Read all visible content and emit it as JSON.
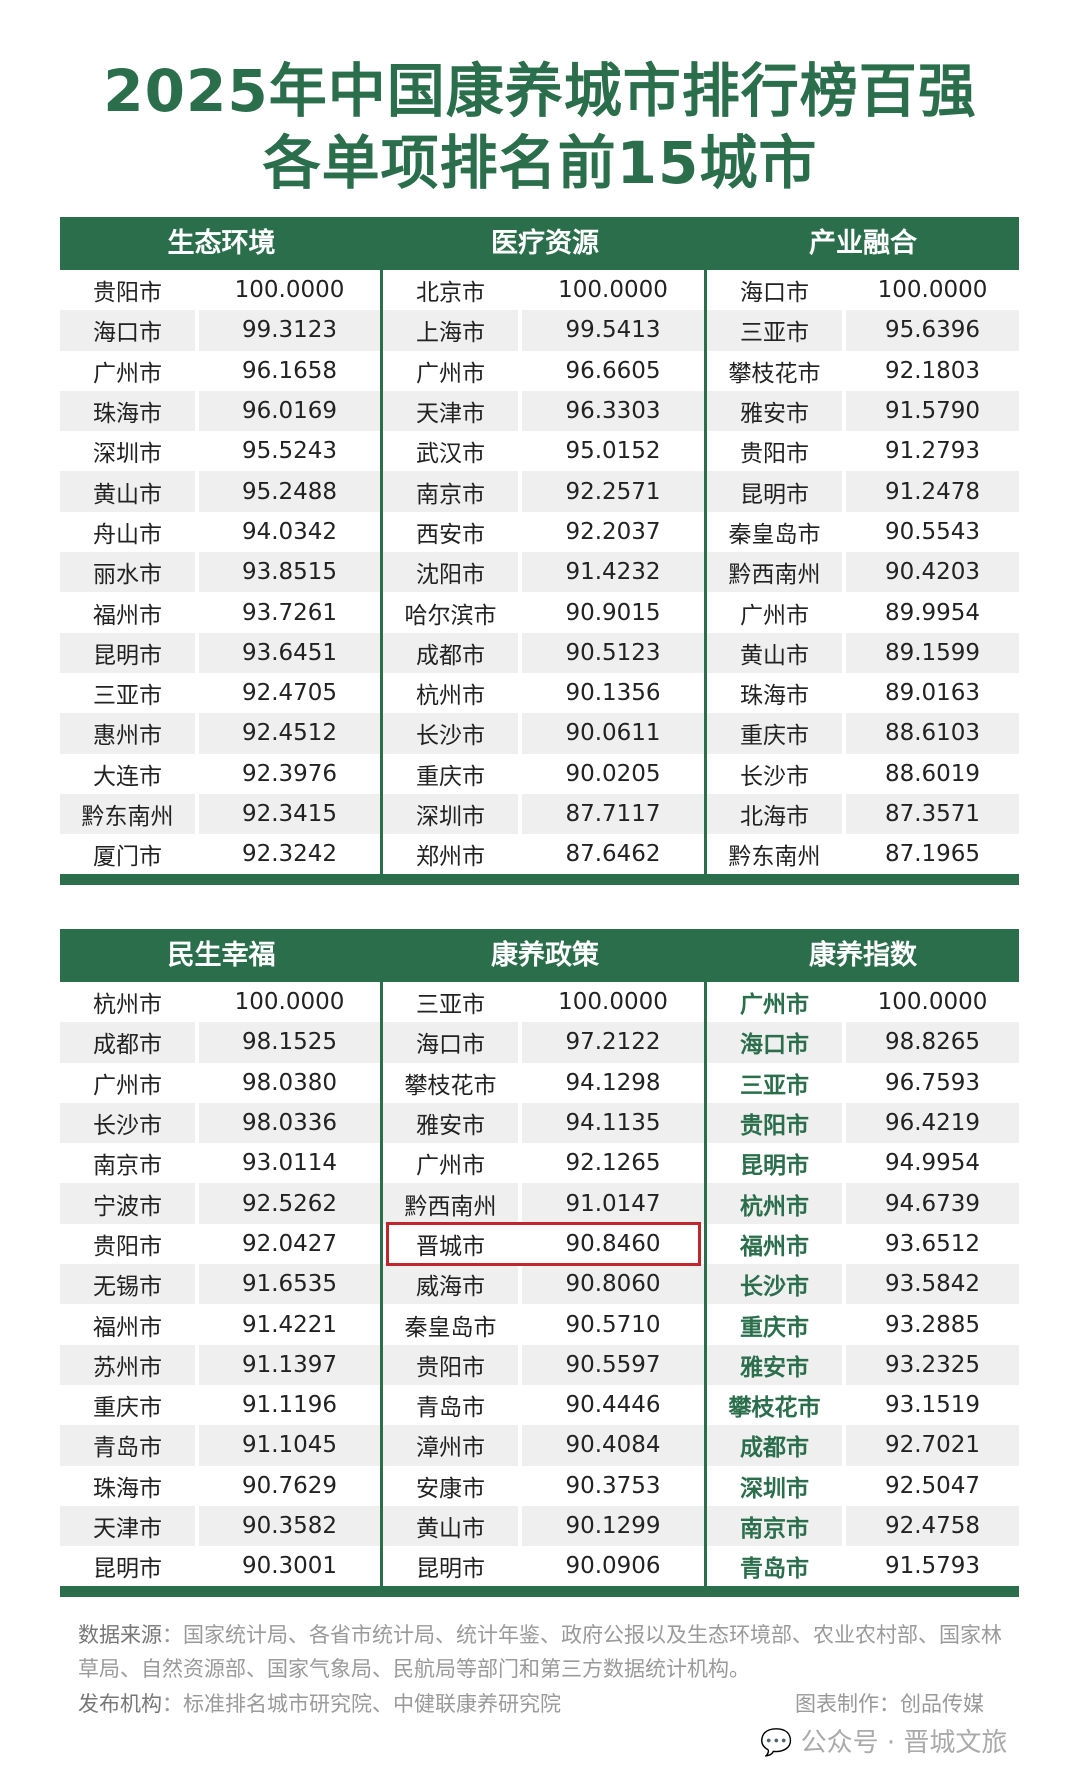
{
  "title_line1": "2025年中国康养城市排行榜百强",
  "title_line2": "各单项排名前15城市",
  "tables": [
    {
      "groups": [
        {
          "header": "生态环境",
          "rows": [
            [
              "贵阳市",
              "100.0000"
            ],
            [
              "海口市",
              "99.3123"
            ],
            [
              "广州市",
              "96.1658"
            ],
            [
              "珠海市",
              "96.0169"
            ],
            [
              "深圳市",
              "95.5243"
            ],
            [
              "黄山市",
              "95.2488"
            ],
            [
              "舟山市",
              "94.0342"
            ],
            [
              "丽水市",
              "93.8515"
            ],
            [
              "福州市",
              "93.7261"
            ],
            [
              "昆明市",
              "93.6451"
            ],
            [
              "三亚市",
              "92.4705"
            ],
            [
              "惠州市",
              "92.4512"
            ],
            [
              "大连市",
              "92.3976"
            ],
            [
              "黔东南州",
              "92.3415"
            ],
            [
              "厦门市",
              "92.3242"
            ]
          ]
        },
        {
          "header": "医疗资源",
          "rows": [
            [
              "北京市",
              "100.0000"
            ],
            [
              "上海市",
              "99.5413"
            ],
            [
              "广州市",
              "96.6605"
            ],
            [
              "天津市",
              "96.3303"
            ],
            [
              "武汉市",
              "95.0152"
            ],
            [
              "南京市",
              "92.2571"
            ],
            [
              "西安市",
              "92.2037"
            ],
            [
              "沈阳市",
              "91.4232"
            ],
            [
              "哈尔滨市",
              "90.9015"
            ],
            [
              "成都市",
              "90.5123"
            ],
            [
              "杭州市",
              "90.1356"
            ],
            [
              "长沙市",
              "90.0611"
            ],
            [
              "重庆市",
              "90.0205"
            ],
            [
              "深圳市",
              "87.7117"
            ],
            [
              "郑州市",
              "87.6462"
            ]
          ]
        },
        {
          "header": "产业融合",
          "rows": [
            [
              "海口市",
              "100.0000"
            ],
            [
              "三亚市",
              "95.6396"
            ],
            [
              "攀枝花市",
              "92.1803"
            ],
            [
              "雅安市",
              "91.5790"
            ],
            [
              "贵阳市",
              "91.2793"
            ],
            [
              "昆明市",
              "91.2478"
            ],
            [
              "秦皇岛市",
              "90.5543"
            ],
            [
              "黔西南州",
              "90.4203"
            ],
            [
              "广州市",
              "89.9954"
            ],
            [
              "黄山市",
              "89.1599"
            ],
            [
              "珠海市",
              "89.0163"
            ],
            [
              "重庆市",
              "88.6103"
            ],
            [
              "长沙市",
              "88.6019"
            ],
            [
              "北海市",
              "87.3571"
            ],
            [
              "黔东南州",
              "87.1965"
            ]
          ]
        }
      ]
    },
    {
      "groups": [
        {
          "header": "民生幸福",
          "rows": [
            [
              "杭州市",
              "100.0000"
            ],
            [
              "成都市",
              "98.1525"
            ],
            [
              "广州市",
              "98.0380"
            ],
            [
              "长沙市",
              "98.0336"
            ],
            [
              "南京市",
              "93.0114"
            ],
            [
              "宁波市",
              "92.5262"
            ],
            [
              "贵阳市",
              "92.0427"
            ],
            [
              "无锡市",
              "91.6535"
            ],
            [
              "福州市",
              "91.4221"
            ],
            [
              "苏州市",
              "91.1397"
            ],
            [
              "重庆市",
              "91.1196"
            ],
            [
              "青岛市",
              "91.1045"
            ],
            [
              "珠海市",
              "90.7629"
            ],
            [
              "天津市",
              "90.3582"
            ],
            [
              "昆明市",
              "90.3001"
            ]
          ]
        },
        {
          "header": "康养政策",
          "rows": [
            [
              "三亚市",
              "100.0000"
            ],
            [
              "海口市",
              "97.2122"
            ],
            [
              "攀枝花市",
              "94.1298"
            ],
            [
              "雅安市",
              "94.1135"
            ],
            [
              "广州市",
              "92.1265"
            ],
            [
              "黔西南州",
              "91.0147"
            ],
            [
              "晋城市",
              "90.8460"
            ],
            [
              "威海市",
              "90.8060"
            ],
            [
              "秦皇岛市",
              "90.5710"
            ],
            [
              "贵阳市",
              "90.5597"
            ],
            [
              "青岛市",
              "90.4446"
            ],
            [
              "漳州市",
              "90.4084"
            ],
            [
              "安康市",
              "90.3753"
            ],
            [
              "黄山市",
              "90.1299"
            ],
            [
              "昆明市",
              "90.0906"
            ]
          ]
        },
        {
          "header": "康养指数",
          "rows": [
            [
              "广州市",
              "100.0000"
            ],
            [
              "海口市",
              "98.8265"
            ],
            [
              "三亚市",
              "96.7593"
            ],
            [
              "贵阳市",
              "96.4219"
            ],
            [
              "昆明市",
              "94.9954"
            ],
            [
              "杭州市",
              "94.6739"
            ],
            [
              "福州市",
              "93.6512"
            ],
            [
              "长沙市",
              "93.5842"
            ],
            [
              "重庆市",
              "93.2885"
            ],
            [
              "雅安市",
              "93.2325"
            ],
            [
              "攀枝花市",
              "93.1519"
            ],
            [
              "成都市",
              "92.7021"
            ],
            [
              "深圳市",
              "92.5047"
            ],
            [
              "南京市",
              "92.4758"
            ],
            [
              "青岛市",
              "91.5793"
            ]
          ]
        }
      ]
    }
  ],
  "highlighted_city": "晋城市",
  "colors": {
    "brand_green": "#2a6e4c",
    "highlight_red": "#c0272d",
    "stripe": "#efefef"
  },
  "footer": {
    "source_label": "数据来源",
    "source_text": "：国家统计局、各省市统计局、统计年鉴、政府公报以及生态环境部、农业农村部、国家林草局、自然资源部、国家气象局、民航局等部门和第三方数据统计机构。",
    "publisher_label": "发布机构",
    "publisher_text": "：标准排名城市研究院、中健联康养研究院",
    "credit": "图表制作：创品传媒",
    "watermark": "公众号 · 晋城文旅"
  }
}
